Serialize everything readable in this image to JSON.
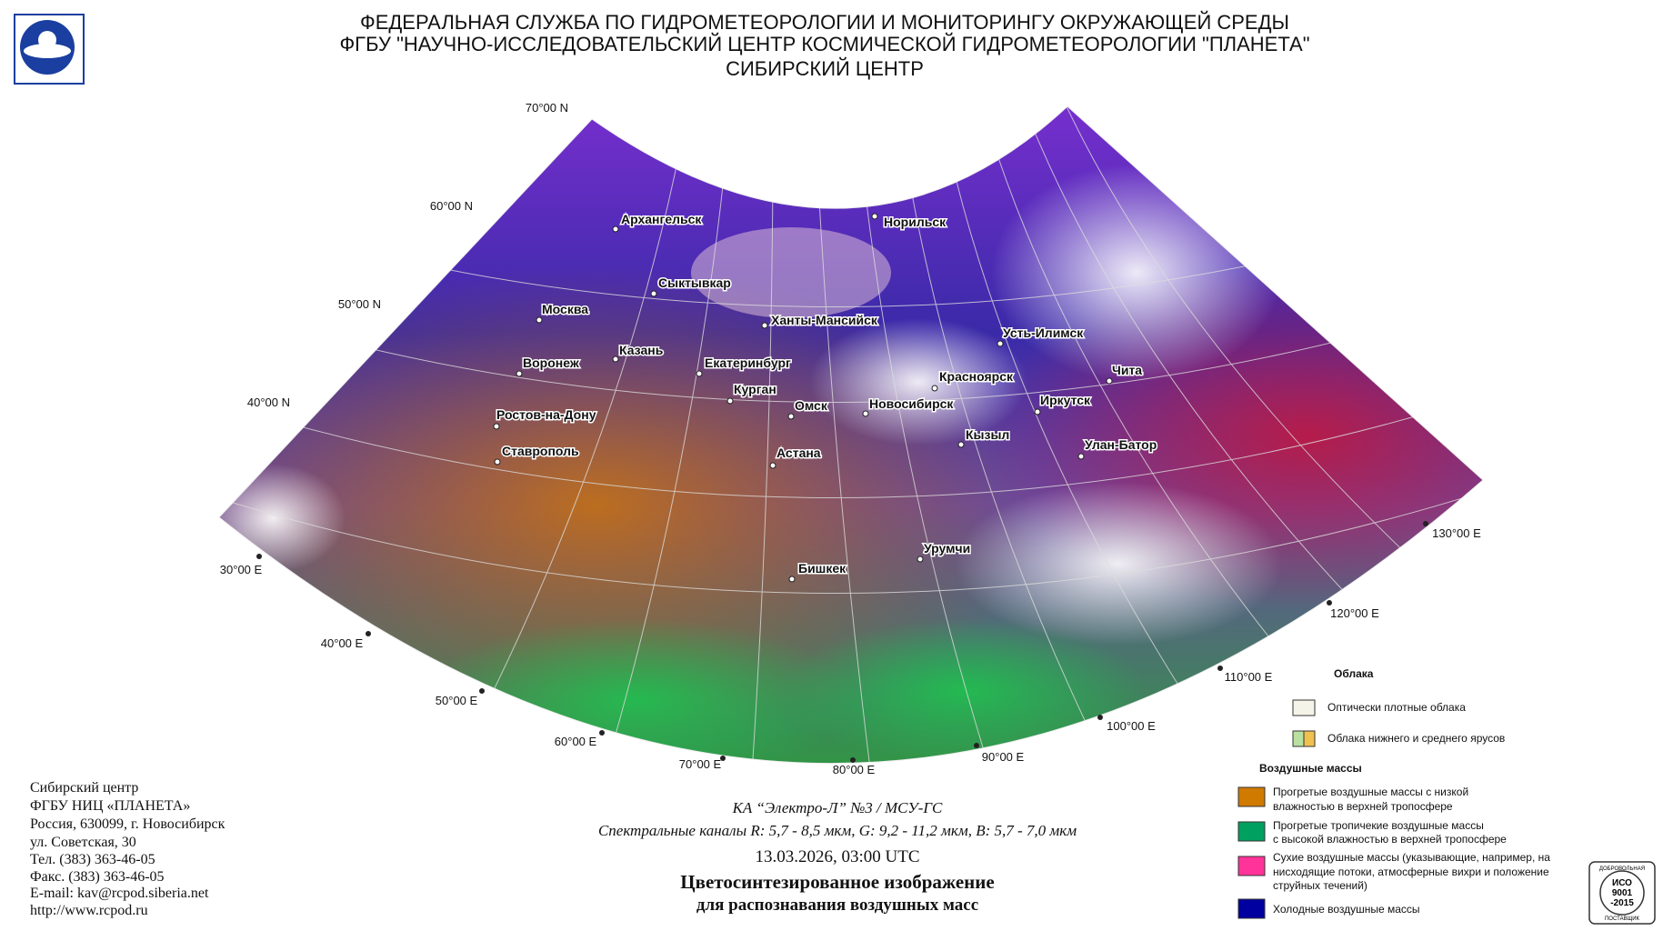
{
  "header": {
    "lines": [
      "ФЕДЕРАЛЬНАЯ СЛУЖБА ПО ГИДРОМЕТЕОРОЛОГИИ И МОНИТОРИНГУ ОКРУЖАЮЩЕЙ СРЕДЫ",
      "ФГБУ \"НАУЧНО-ИССЛЕДОВАТЕЛЬСКИЙ ЦЕНТР КОСМИЧЕСКОЙ ГИДРОМЕТЕОРОЛОГИИ \"ПЛАНЕТА\"",
      "СИБИРСКИЙ ЦЕНТР"
    ]
  },
  "map": {
    "lat_labels": [
      "70°00 N",
      "60°00 N",
      "50°00 N",
      "40°00 N"
    ],
    "lon_labels": [
      "30°00 E",
      "40°00 E",
      "50°00 E",
      "60°00 E",
      "70°00 E",
      "80°00 E",
      "90°00 E",
      "100°00 E",
      "110°00 E",
      "120°00 E",
      "130°00 E"
    ],
    "cities": [
      "Архангельск",
      "Норильск",
      "Сыктывкар",
      "Москва",
      "Ханты-Мансийск",
      "Усть-Илимск",
      "Казань",
      "Воронеж",
      "Екатеринбург",
      "Чита",
      "Красноярск",
      "Курган",
      "Иркутск",
      "Омск",
      "Новосибирск",
      "Ростов-на-Дону",
      "Кызыл",
      "Улан-Батор",
      "Ставрополь",
      "Астана",
      "Урумчи",
      "Бишкек"
    ]
  },
  "legend": {
    "clouds_title": "Облака",
    "clouds": [
      [
        "Оптически плотные облака"
      ],
      [
        "Облака нижнего и среднего ярусов"
      ]
    ],
    "air_title": "Воздушные массы",
    "air": [
      [
        "Прогретые воздушные массы с низкой",
        "влажностью в верхней тропосфере"
      ],
      [
        "Прогретые тропичекие воздушные массы",
        "с высокой влажностью в верхней тропосфере"
      ],
      [
        "Сухие воздушные массы (указывающие, например, на",
        "нисходящие потоки, атмосферные вихри и положение",
        "струйных течений)"
      ],
      [
        "Холодные воздушные массы"
      ]
    ]
  },
  "caption": {
    "satellite": "КА “Электро-Л” №3 / МСУ-ГС",
    "channels": "Спектральные каналы R: 5,7 - 8,5 мкм, G: 9,2 - 11,2 мкм, B: 5,7 - 7,0 мкм",
    "datetime": "13.03.2026, 03:00 UTC",
    "title": [
      "Цветосинтезированное изображение",
      "для распознавания воздушных масс"
    ]
  },
  "contact": {
    "lines": [
      "Сибирский центр",
      "ФГБУ НИЦ «ПЛАНЕТА»",
      "Россия, 630099, г. Новосибирск",
      "ул. Советская, 30",
      "Тел. (383) 363-46-05",
      "Факс. (383) 363-46-05",
      "E-mail: kav@rcpod.siberia.net",
      "http://www.rcpod.ru"
    ]
  },
  "iso": {
    "top": "ДОБРОВОЛЬНАЯ",
    "lines": [
      "ИСО",
      "9001",
      "-2015"
    ],
    "bottom": "ПОСТАВЩИК"
  }
}
